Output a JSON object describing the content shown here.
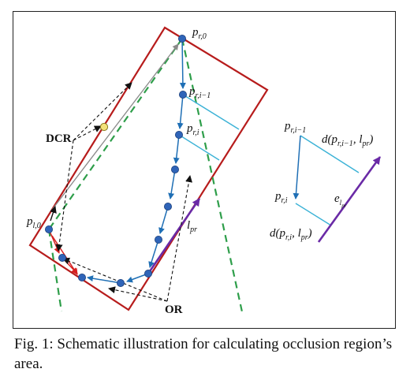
{
  "figure": {
    "labels": {
      "pr0": "p",
      "pr0_sub": "r,0",
      "pri1": "p",
      "pri1_sub": "r,i−1",
      "pri": "p",
      "pri_sub": "r,i",
      "pl0": "p",
      "pl0_sub": "l,0",
      "lpr": "l",
      "lpr_sub": "pr",
      "dcr": "DCR",
      "or": "OR"
    },
    "inset": {
      "pri1": "p",
      "pri1_sub": "r,i−1",
      "pri": "p",
      "pri_sub": "r,i",
      "d_top": "d(p",
      "d_top_sub1": "r,i−1",
      "d_top_mid": ", l",
      "d_top_sub2": "pr",
      "d_top_end": ")",
      "d_bot": "d(p",
      "d_bot_sub1": "r,i",
      "d_bot_mid": ", l",
      "d_bot_sub2": "pr",
      "d_bot_end": ")",
      "e": "e",
      "e_sub": "l",
      "e_subsub": "pr"
    },
    "colors": {
      "rect": "#b71c1c",
      "dash_green": "#2e9e4a",
      "blue": "#1f6fb5",
      "cyan": "#3bb2d6",
      "purple": "#6a2aa6",
      "red_arrow": "#d62020",
      "yellow_point": "#f3e27a",
      "gray": "#8a8a8a"
    }
  },
  "caption": {
    "text": "Fig. 1: Schematic illustration for calculating occlusion region’s area."
  }
}
